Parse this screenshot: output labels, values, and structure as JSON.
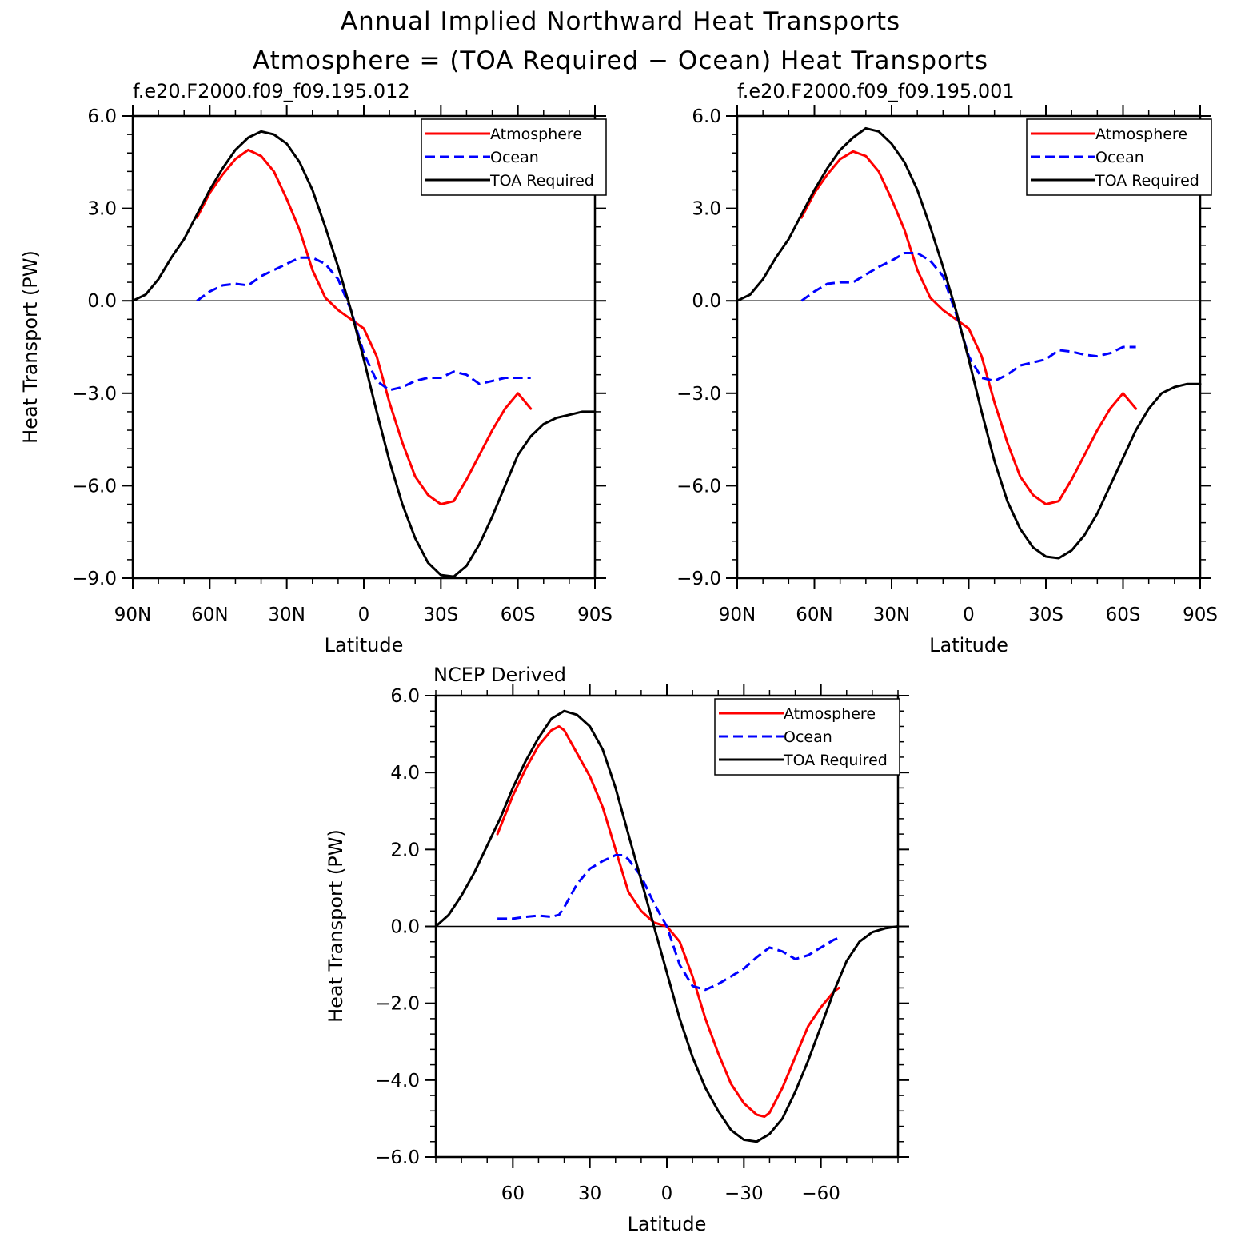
{
  "figure": {
    "title_line1": "Annual Implied Northward Heat Transports",
    "title_line2": "Atmosphere = (TOA Required − Ocean) Heat Transports"
  },
  "colors": {
    "atmosphere": "#ff0000",
    "ocean": "#0000ff",
    "toa": "#000000"
  },
  "chart_data": [
    {
      "type": "line",
      "title": "f.e20.F2000.f09_f09.195.012",
      "xlabel": "Latitude",
      "ylabel": "Heat Transport (PW)",
      "xlim": [
        90,
        -90
      ],
      "ylim": [
        -9,
        6
      ],
      "x_ticks": [
        90,
        60,
        30,
        0,
        -30,
        -60,
        -90
      ],
      "x_tick_labels": [
        "90N",
        "60N",
        "30N",
        "0",
        "30S",
        "60S",
        "90S"
      ],
      "y_ticks": [
        6,
        3,
        0,
        -3,
        -6,
        -9
      ],
      "y_tick_labels": [
        "6.0",
        "3.0",
        "0.0",
        "−3.0",
        "−6.0",
        "−9.0"
      ],
      "legend_position": "top-right",
      "series": [
        {
          "name": "Atmosphere",
          "color": "#ff0000",
          "dash": "solid",
          "x": [
            65,
            60,
            55,
            50,
            45,
            40,
            35,
            30,
            25,
            20,
            15,
            10,
            5,
            0,
            -5,
            -10,
            -15,
            -20,
            -25,
            -30,
            -35,
            -40,
            -45,
            -50,
            -55,
            -60,
            -65
          ],
          "y": [
            2.7,
            3.5,
            4.1,
            4.6,
            4.9,
            4.7,
            4.2,
            3.3,
            2.3,
            1.0,
            0.1,
            -0.3,
            -0.6,
            -0.9,
            -1.8,
            -3.3,
            -4.6,
            -5.7,
            -6.3,
            -6.6,
            -6.5,
            -5.8,
            -5.0,
            -4.2,
            -3.5,
            -3.0,
            -3.5
          ]
        },
        {
          "name": "Ocean",
          "color": "#0000ff",
          "dash": "dashed",
          "x": [
            65,
            60,
            55,
            50,
            45,
            40,
            35,
            30,
            25,
            20,
            15,
            10,
            5,
            0,
            -5,
            -10,
            -15,
            -20,
            -25,
            -30,
            -35,
            -40,
            -45,
            -50,
            -55,
            -60,
            -65
          ],
          "y": [
            0.0,
            0.3,
            0.5,
            0.55,
            0.5,
            0.8,
            1.0,
            1.2,
            1.4,
            1.4,
            1.2,
            0.7,
            -0.3,
            -1.7,
            -2.6,
            -2.9,
            -2.8,
            -2.6,
            -2.5,
            -2.5,
            -2.3,
            -2.4,
            -2.7,
            -2.6,
            -2.5,
            -2.5,
            -2.5
          ]
        },
        {
          "name": "TOA Required",
          "color": "#000000",
          "dash": "solid",
          "x": [
            90,
            85,
            80,
            75,
            70,
            65,
            60,
            55,
            50,
            45,
            40,
            35,
            30,
            25,
            20,
            15,
            10,
            5,
            0,
            -5,
            -10,
            -15,
            -20,
            -25,
            -30,
            -35,
            -40,
            -45,
            -50,
            -55,
            -60,
            -65,
            -70,
            -75,
            -80,
            -85,
            -90
          ],
          "y": [
            0.0,
            0.2,
            0.7,
            1.4,
            2.0,
            2.8,
            3.6,
            4.3,
            4.9,
            5.3,
            5.5,
            5.4,
            5.1,
            4.5,
            3.6,
            2.4,
            1.1,
            -0.3,
            -1.9,
            -3.6,
            -5.2,
            -6.6,
            -7.7,
            -8.5,
            -8.9,
            -8.95,
            -8.6,
            -7.9,
            -7.0,
            -6.0,
            -5.0,
            -4.4,
            -4.0,
            -3.8,
            -3.7,
            -3.6,
            -3.6
          ]
        }
      ]
    },
    {
      "type": "line",
      "title": "f.e20.F2000.f09_f09.195.001",
      "xlabel": "Latitude",
      "ylabel": "",
      "xlim": [
        90,
        -90
      ],
      "ylim": [
        -9,
        6
      ],
      "x_ticks": [
        90,
        60,
        30,
        0,
        -30,
        -60,
        -90
      ],
      "x_tick_labels": [
        "90N",
        "60N",
        "30N",
        "0",
        "30S",
        "60S",
        "90S"
      ],
      "y_ticks": [
        6,
        3,
        0,
        -3,
        -6,
        -9
      ],
      "y_tick_labels": [
        "6.0",
        "3.0",
        "0.0",
        "−3.0",
        "−6.0",
        "−9.0"
      ],
      "legend_position": "top-right",
      "series": [
        {
          "name": "Atmosphere",
          "color": "#ff0000",
          "dash": "solid",
          "x": [
            65,
            60,
            55,
            50,
            45,
            40,
            35,
            30,
            25,
            20,
            15,
            10,
            5,
            0,
            -5,
            -10,
            -15,
            -20,
            -25,
            -30,
            -35,
            -40,
            -45,
            -50,
            -55,
            -60,
            -65
          ],
          "y": [
            2.7,
            3.5,
            4.1,
            4.6,
            4.85,
            4.7,
            4.2,
            3.3,
            2.3,
            1.0,
            0.1,
            -0.3,
            -0.6,
            -0.9,
            -1.8,
            -3.3,
            -4.6,
            -5.7,
            -6.3,
            -6.6,
            -6.5,
            -5.8,
            -5.0,
            -4.2,
            -3.5,
            -3.0,
            -3.5
          ]
        },
        {
          "name": "Ocean",
          "color": "#0000ff",
          "dash": "dashed",
          "x": [
            65,
            60,
            55,
            50,
            45,
            40,
            35,
            30,
            25,
            20,
            15,
            10,
            5,
            0,
            -5,
            -10,
            -15,
            -20,
            -25,
            -30,
            -35,
            -40,
            -45,
            -50,
            -55,
            -60,
            -65
          ],
          "y": [
            0.0,
            0.3,
            0.55,
            0.6,
            0.6,
            0.85,
            1.1,
            1.3,
            1.55,
            1.55,
            1.3,
            0.8,
            -0.4,
            -1.8,
            -2.5,
            -2.6,
            -2.4,
            -2.1,
            -2.0,
            -1.9,
            -1.6,
            -1.65,
            -1.75,
            -1.8,
            -1.7,
            -1.5,
            -1.5
          ]
        },
        {
          "name": "TOA Required",
          "color": "#000000",
          "dash": "solid",
          "x": [
            90,
            85,
            80,
            75,
            70,
            65,
            60,
            55,
            50,
            45,
            40,
            35,
            30,
            25,
            20,
            15,
            10,
            5,
            0,
            -5,
            -10,
            -15,
            -20,
            -25,
            -30,
            -35,
            -40,
            -45,
            -50,
            -55,
            -60,
            -65,
            -70,
            -75,
            -80,
            -85,
            -90
          ],
          "y": [
            0.0,
            0.2,
            0.7,
            1.4,
            2.0,
            2.8,
            3.6,
            4.3,
            4.9,
            5.3,
            5.6,
            5.5,
            5.1,
            4.5,
            3.6,
            2.4,
            1.1,
            -0.3,
            -1.9,
            -3.6,
            -5.2,
            -6.5,
            -7.4,
            -8.0,
            -8.3,
            -8.35,
            -8.1,
            -7.6,
            -6.9,
            -6.0,
            -5.1,
            -4.2,
            -3.5,
            -3.0,
            -2.8,
            -2.7,
            -2.7
          ]
        }
      ]
    },
    {
      "type": "line",
      "title": "NCEP Derived",
      "xlabel": "Latitude",
      "ylabel": "Heat Transport (PW)",
      "xlim": [
        90,
        -90
      ],
      "ylim": [
        -6,
        6
      ],
      "x_ticks": [
        60,
        30,
        0,
        -30,
        -60
      ],
      "x_tick_labels": [
        "60",
        "30",
        "0",
        "−30",
        "−60"
      ],
      "y_ticks": [
        6,
        4,
        2,
        0,
        -2,
        -4,
        -6
      ],
      "y_tick_labels": [
        "6.0",
        "4.0",
        "2.0",
        "0.0",
        "−2.0",
        "−4.0",
        "−6.0"
      ],
      "legend_position": "top-right",
      "series": [
        {
          "name": "Atmosphere",
          "color": "#ff0000",
          "dash": "solid",
          "x": [
            66,
            60,
            55,
            50,
            45,
            42,
            40,
            35,
            30,
            25,
            20,
            15,
            10,
            5,
            0,
            -5,
            -10,
            -15,
            -20,
            -25,
            -30,
            -35,
            -38,
            -40,
            -45,
            -50,
            -55,
            -60,
            -65,
            -67
          ],
          "y": [
            2.4,
            3.4,
            4.1,
            4.7,
            5.1,
            5.2,
            5.1,
            4.5,
            3.9,
            3.1,
            2.0,
            0.9,
            0.4,
            0.1,
            0.0,
            -0.4,
            -1.3,
            -2.4,
            -3.3,
            -4.1,
            -4.6,
            -4.9,
            -4.95,
            -4.85,
            -4.2,
            -3.4,
            -2.6,
            -2.1,
            -1.7,
            -1.6
          ]
        },
        {
          "name": "Ocean",
          "color": "#0000ff",
          "dash": "dashed",
          "x": [
            66,
            60,
            55,
            50,
            45,
            42,
            40,
            35,
            30,
            25,
            20,
            17,
            15,
            10,
            5,
            0,
            -5,
            -10,
            -15,
            -20,
            -25,
            -30,
            -35,
            -40,
            -45,
            -50,
            -55,
            -60,
            -65,
            -67
          ],
          "y": [
            0.2,
            0.2,
            0.25,
            0.28,
            0.25,
            0.3,
            0.5,
            1.1,
            1.5,
            1.7,
            1.85,
            1.85,
            1.75,
            1.3,
            0.6,
            0.0,
            -1.0,
            -1.55,
            -1.65,
            -1.5,
            -1.3,
            -1.1,
            -0.8,
            -0.55,
            -0.65,
            -0.85,
            -0.75,
            -0.55,
            -0.35,
            -0.3
          ]
        },
        {
          "name": "TOA Required",
          "color": "#000000",
          "dash": "solid",
          "x": [
            90,
            85,
            80,
            75,
            70,
            65,
            60,
            55,
            50,
            45,
            40,
            35,
            30,
            25,
            20,
            15,
            10,
            5,
            0,
            -5,
            -10,
            -15,
            -20,
            -25,
            -30,
            -35,
            -40,
            -45,
            -50,
            -55,
            -60,
            -65,
            -70,
            -75,
            -80,
            -85,
            -90
          ],
          "y": [
            0.0,
            0.3,
            0.8,
            1.4,
            2.1,
            2.8,
            3.6,
            4.3,
            4.9,
            5.4,
            5.6,
            5.5,
            5.2,
            4.6,
            3.6,
            2.4,
            1.2,
            0.0,
            -1.2,
            -2.4,
            -3.4,
            -4.2,
            -4.8,
            -5.3,
            -5.55,
            -5.6,
            -5.4,
            -5.0,
            -4.3,
            -3.5,
            -2.6,
            -1.7,
            -0.9,
            -0.4,
            -0.15,
            -0.05,
            0.0
          ]
        }
      ]
    }
  ]
}
